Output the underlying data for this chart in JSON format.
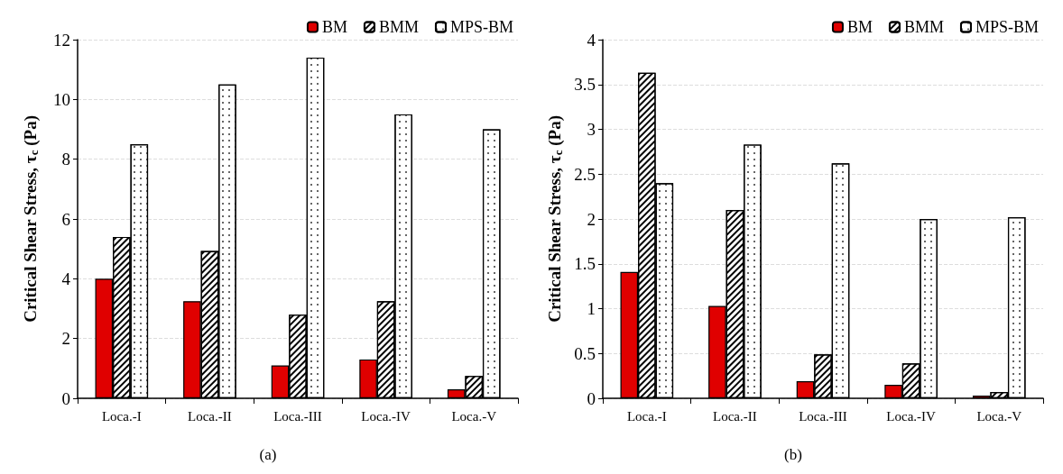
{
  "chart_data": [
    {
      "type": "bar",
      "title": "(a)",
      "ylabel": "Critical Shear Stress, τ$_{c}$ (Pa)",
      "categories": [
        "Loca.-I",
        "Loca.-II",
        "Loca.-III",
        "Loca.-IV",
        "Loca.-V"
      ],
      "series": [
        {
          "name": "BM",
          "color": "#e00000",
          "values": [
            4.0,
            3.25,
            1.1,
            1.3,
            0.3
          ]
        },
        {
          "name": "BMM",
          "color": "#ffffff",
          "values": [
            5.4,
            4.93,
            2.8,
            3.25,
            0.75
          ]
        },
        {
          "name": "MPS-BM",
          "color": "#ffffff",
          "values": [
            8.5,
            10.5,
            11.4,
            9.5,
            9.0
          ]
        }
      ],
      "ylim": [
        0,
        12
      ],
      "yticks": [
        0,
        2,
        4,
        6,
        8,
        10,
        12
      ],
      "grid": "y",
      "legend": "top right"
    },
    {
      "type": "bar",
      "title": "(b)",
      "ylabel": "Critical Shear Stress, τ$_{c}$ (Pa)",
      "categories": [
        "Loca.-I",
        "Loca.-II",
        "Loca.-III",
        "Loca.-IV",
        "Loca.-V"
      ],
      "series": [
        {
          "name": "BM",
          "color": "#e00000",
          "values": [
            1.41,
            1.03,
            0.19,
            0.15,
            0.03
          ]
        },
        {
          "name": "BMM",
          "color": "#ffffff",
          "values": [
            3.63,
            2.1,
            0.49,
            0.39,
            0.07
          ]
        },
        {
          "name": "MPS-BM",
          "color": "#ffffff",
          "values": [
            2.4,
            2.83,
            2.62,
            2.0,
            2.02
          ]
        }
      ],
      "ylim": [
        0,
        4
      ],
      "yticks": [
        0,
        0.5,
        1,
        1.5,
        2,
        2.5,
        3,
        3.5,
        4
      ],
      "grid": "y",
      "legend": "top right"
    }
  ]
}
